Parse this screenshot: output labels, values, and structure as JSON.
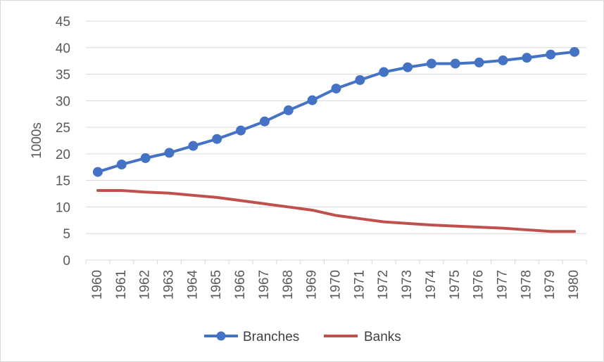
{
  "chart_data": {
    "type": "line",
    "title": "",
    "xlabel": "",
    "ylabel": "1000s",
    "ylim": [
      0,
      45
    ],
    "yticks": [
      0,
      5,
      10,
      15,
      20,
      25,
      30,
      35,
      40,
      45
    ],
    "grid": true,
    "legend_position": "bottom",
    "categories": [
      "1960",
      "1961",
      "1962",
      "1963",
      "1964",
      "1965",
      "1966",
      "1967",
      "1968",
      "1969",
      "1970",
      "1971",
      "1972",
      "1973",
      "1974",
      "1975",
      "1976",
      "1977",
      "1978",
      "1979",
      "1980"
    ],
    "series": [
      {
        "name": "Branches",
        "color": "#4472c4",
        "marker": "circle",
        "values": [
          16.6,
          18.0,
          19.2,
          20.2,
          21.5,
          22.8,
          24.4,
          26.1,
          28.2,
          30.1,
          32.3,
          33.9,
          35.4,
          36.3,
          37.0,
          37.0,
          37.2,
          37.6,
          38.1,
          38.7,
          39.2
        ]
      },
      {
        "name": "Banks",
        "color": "#c0504d",
        "marker": "none",
        "values": [
          13.1,
          13.1,
          12.8,
          12.6,
          12.2,
          11.8,
          11.2,
          10.6,
          10.0,
          9.4,
          8.4,
          7.8,
          7.2,
          6.9,
          6.6,
          6.4,
          6.2,
          6.0,
          5.7,
          5.4,
          5.4
        ]
      }
    ]
  }
}
